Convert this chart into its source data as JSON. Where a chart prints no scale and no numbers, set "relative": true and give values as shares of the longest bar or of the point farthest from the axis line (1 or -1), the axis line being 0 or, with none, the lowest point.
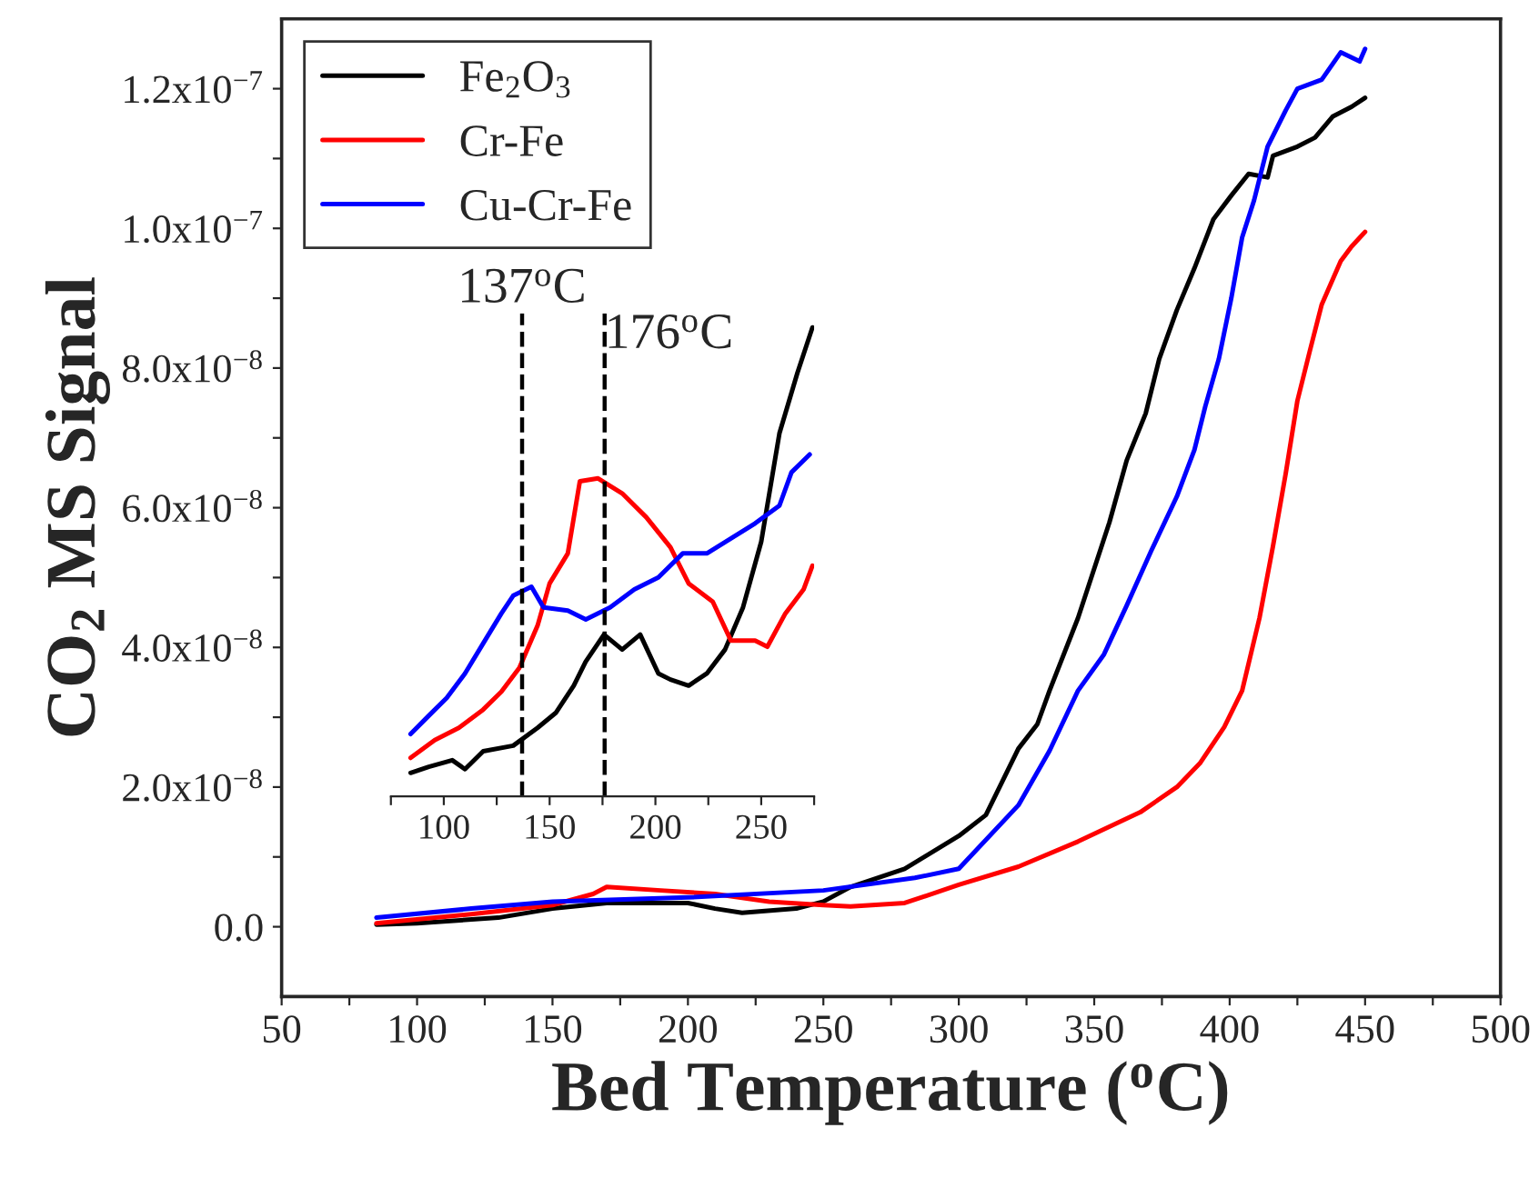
{
  "chart_data": [
    {
      "type": "line",
      "xlabel": "Bed Temperature ($^{o}$C)",
      "ylabel": "CO$_{2}$ MS Signal",
      "legend": "top left",
      "grid": false,
      "marker": "none",
      "line_style": "solid",
      "xlim": [
        50,
        500
      ],
      "ylim": [
        -1e-08,
        1.3e-07
      ],
      "xticks": [
        50,
        {
          "value": 75,
          "label": null
        },
        100,
        {
          "value": 125,
          "label": null
        },
        150,
        {
          "value": 175,
          "label": null
        },
        200,
        {
          "value": 225,
          "label": null
        },
        250,
        {
          "value": 275,
          "label": null
        },
        300,
        {
          "value": 325,
          "label": null
        },
        350,
        {
          "value": 375,
          "label": null
        },
        400,
        {
          "value": 425,
          "label": null
        },
        450,
        {
          "value": 475,
          "label": null
        },
        500
      ],
      "yticks": [
        {
          "value": 0,
          "label": "0.0"
        },
        {
          "value": 1e-08,
          "label": null
        },
        {
          "value": 2e-08,
          "label": "2.0x10$^{−8}$"
        },
        {
          "value": 3e-08,
          "label": null
        },
        {
          "value": 4e-08,
          "label": "4.0x10$^{−8}$"
        },
        {
          "value": 5e-08,
          "label": null
        },
        {
          "value": 6e-08,
          "label": "6.0x10$^{−8}$"
        },
        {
          "value": 7e-08,
          "label": null
        },
        {
          "value": 8e-08,
          "label": "8.0x10$^{−8}$"
        },
        {
          "value": 9e-08,
          "label": null
        },
        {
          "value": 1e-07,
          "label": "1.0x10$^{−7}$"
        },
        {
          "value": 1.1e-07,
          "label": null
        },
        {
          "value": 1.2e-07,
          "label": "1.2x10$^{−7}$"
        }
      ],
      "series": [
        {
          "name": "Fe$_{2}$O$_{3}$",
          "color": "#000000",
          "x": [
            85,
            100,
            130,
            150,
            170,
            185,
            200,
            210,
            220,
            240,
            250,
            260,
            280,
            300,
            310,
            322,
            329,
            333.5,
            344,
            355.6,
            362,
            369,
            374,
            380.5,
            387,
            394,
            400.6,
            407,
            414,
            416,
            425,
            431.5,
            438,
            445,
            450
          ],
          "values": [
            3e-10,
            5e-10,
            1.3e-09,
            2.6e-09,
            3.4e-09,
            3.4e-09,
            3.4e-09,
            2.6e-09,
            2e-09,
            2.6e-09,
            3.6e-09,
            5.7e-09,
            8.3e-09,
            1.3e-08,
            1.6e-08,
            2.55e-08,
            2.9e-08,
            3.38e-08,
            4.42e-08,
            5.79e-08,
            6.68e-08,
            7.35e-08,
            8.13e-08,
            8.83e-08,
            9.43e-08,
            1.013e-07,
            1.047e-07,
            1.078e-07,
            1.073e-07,
            1.104e-07,
            1.117e-07,
            1.13e-07,
            1.16e-07,
            1.174e-07,
            1.187e-07
          ]
        },
        {
          "name": "Cr-Fe",
          "color": "#ff0000",
          "x": [
            85,
            120,
            150,
            165,
            170,
            190,
            210,
            230,
            250,
            260,
            280,
            300,
            322,
            344,
            367,
            380.5,
            389,
            398,
            404.6,
            411,
            416,
            420.7,
            425,
            429.5,
            434,
            441,
            445,
            450
          ],
          "values": [
            5e-10,
            1.8e-09,
            3.1e-09,
            4.7e-09,
            5.7e-09,
            5.2e-09,
            4.7e-09,
            3.6e-09,
            3.1e-09,
            2.9e-09,
            3.4e-09,
            6e-09,
            8.6e-09,
            1.22e-08,
            1.64e-08,
            2e-08,
            2.34e-08,
            2.86e-08,
            3.38e-08,
            4.42e-08,
            5.45e-08,
            6.49e-08,
            7.53e-08,
            8.23e-08,
            8.91e-08,
            9.53e-08,
            9.74e-08,
            9.95e-08
          ]
        },
        {
          "name": "Cu-Cr-Fe",
          "color": "#0000ff",
          "x": [
            85,
            120,
            150,
            200,
            250,
            283.8,
            300,
            322,
            333.5,
            344,
            353.6,
            362,
            371,
            380.5,
            387,
            391,
            396,
            400.6,
            404.6,
            409,
            414,
            420.7,
            425,
            434,
            441,
            448,
            450
          ],
          "values": [
            1.3e-09,
            2.6e-09,
            3.6e-09,
            4.2e-09,
            5.2e-09,
            7e-09,
            8.3e-09,
            1.74e-08,
            2.52e-08,
            3.38e-08,
            3.9e-08,
            4.6e-08,
            5.38e-08,
            6.16e-08,
            6.83e-08,
            7.45e-08,
            8.13e-08,
            9e-08,
            9.87e-08,
            1.04e-07,
            1.117e-07,
            1.169e-07,
            1.2e-07,
            1.213e-07,
            1.252e-07,
            1.239e-07,
            1.257e-07
          ]
        }
      ]
    },
    {
      "type": "line",
      "relative": true,
      "tick_labels": "x",
      "grid": false,
      "marker": "none",
      "line_style": "solid",
      "xlim": [
        75,
        275
      ],
      "xticks": [
        {
          "value": 75,
          "label": null
        },
        100,
        {
          "value": 125,
          "label": null
        },
        150,
        {
          "value": 175,
          "label": null
        },
        200,
        {
          "value": 225,
          "label": null
        },
        250,
        {
          "value": 275,
          "label": null
        }
      ],
      "ref_lines": [
        {
          "axis": "x",
          "value": 137,
          "label": "137$^{o}$C",
          "color": "#000000",
          "line_style": "dashed"
        },
        {
          "axis": "x",
          "value": 176,
          "label": "176$^{o}$C",
          "color": "#000000",
          "line_style": "dashed"
        }
      ],
      "series": [
        {
          "color": "#000000",
          "x": [
            84.3,
            92.9,
            104,
            110,
            118.6,
            132.8,
            144.3,
            152.9,
            161.4,
            167,
            175.7,
            184.3,
            192.8,
            201.4,
            207.1,
            215.7,
            224.3,
            232.9,
            241.4,
            250,
            258.6,
            267.1,
            274.2
          ],
          "values": [
            0.05,
            0.063,
            0.077,
            0.058,
            0.096,
            0.108,
            0.146,
            0.178,
            0.236,
            0.287,
            0.345,
            0.313,
            0.345,
            0.262,
            0.249,
            0.236,
            0.262,
            0.313,
            0.403,
            0.543,
            0.774,
            0.903,
            1
          ]
        },
        {
          "color": "#ff0000",
          "x": [
            84.3,
            95.7,
            107.1,
            118.6,
            127.2,
            135.7,
            144.3,
            150,
            158.6,
            164.3,
            172.9,
            184.3,
            195.7,
            207.1,
            215.7,
            227.1,
            235.7,
            247.1,
            252.9,
            261.4,
            270,
            274.2
          ],
          "values": [
            0.082,
            0.12,
            0.146,
            0.185,
            0.223,
            0.274,
            0.364,
            0.454,
            0.518,
            0.672,
            0.678,
            0.646,
            0.595,
            0.531,
            0.454,
            0.415,
            0.332,
            0.332,
            0.319,
            0.39,
            0.441,
            0.492
          ]
        },
        {
          "color": "#0000ff",
          "x": [
            84.3,
            92.9,
            101.4,
            110,
            118.6,
            127.2,
            132.8,
            141.4,
            147.1,
            158.6,
            167.1,
            178.6,
            190,
            201.4,
            212.9,
            224.3,
            235.7,
            247.1,
            258.6,
            264.3,
            272.9
          ],
          "values": [
            0.133,
            0.172,
            0.21,
            0.262,
            0.326,
            0.39,
            0.428,
            0.447,
            0.403,
            0.396,
            0.377,
            0.403,
            0.441,
            0.467,
            0.518,
            0.518,
            0.55,
            0.582,
            0.62,
            0.691,
            0.729
          ]
        }
      ]
    }
  ]
}
